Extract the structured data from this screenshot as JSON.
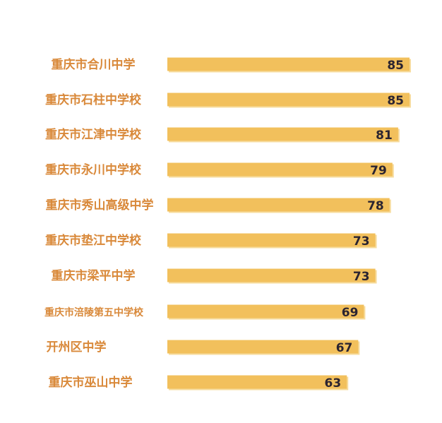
{
  "chart_data": {
    "type": "bar",
    "orientation": "horizontal",
    "categories": [
      "重庆市合川中学",
      "重庆市石柱中学校",
      "重庆市江津中学校",
      "重庆市永川中学校",
      "重庆市秀山高级中学",
      "重庆市垫江中学校",
      "重庆市梁平中学",
      "重庆市涪陵第五中学校",
      "开州区中学",
      "重庆市巫山中学"
    ],
    "values": [
      85,
      85,
      81,
      79,
      78,
      73,
      73,
      69,
      67,
      63
    ],
    "data_labels": [
      "85",
      "85",
      "81",
      "79",
      "78",
      "73",
      "73",
      "69",
      "67",
      "63"
    ],
    "grid": false,
    "legend": "none",
    "colors": {
      "bar": "#f2c05c",
      "bar_shadow": "#f7dc9e",
      "category_text": "#d9893a",
      "value_text": "#2b2430"
    }
  }
}
